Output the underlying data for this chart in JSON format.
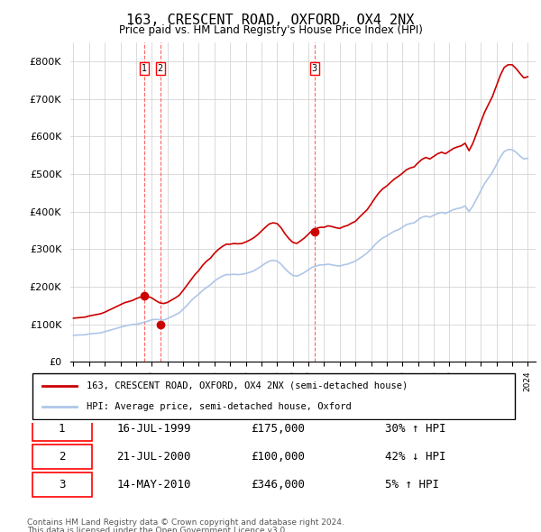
{
  "title": "163, CRESCENT ROAD, OXFORD, OX4 2NX",
  "subtitle": "Price paid vs. HM Land Registry's House Price Index (HPI)",
  "ylabel": "",
  "ylim": [
    0,
    850000
  ],
  "yticks": [
    0,
    100000,
    200000,
    300000,
    400000,
    500000,
    600000,
    700000,
    800000
  ],
  "ytick_labels": [
    "£0",
    "£100K",
    "£200K",
    "£300K",
    "£400K",
    "£500K",
    "£600K",
    "£700K",
    "£800K"
  ],
  "sale_color": "#cc0000",
  "hpi_color": "#aec6e8",
  "vline_color": "#ff6666",
  "marker_color": "#cc0000",
  "transactions": [
    {
      "label": "1",
      "date_str": "16-JUL-1999",
      "year": 1999.54,
      "price": 175000,
      "pct": "30%",
      "dir": "↑"
    },
    {
      "label": "2",
      "date_str": "21-JUL-2000",
      "year": 2000.54,
      "price": 100000,
      "pct": "42%",
      "dir": "↓"
    },
    {
      "label": "3",
      "date_str": "14-MAY-2010",
      "year": 2010.37,
      "price": 346000,
      "pct": "5%",
      "dir": "↑"
    }
  ],
  "legend_line1": "163, CRESCENT ROAD, OXFORD, OX4 2NX (semi-detached house)",
  "legend_line2": "HPI: Average price, semi-detached house, Oxford",
  "footer1": "Contains HM Land Registry data © Crown copyright and database right 2024.",
  "footer2": "This data is licensed under the Open Government Licence v3.0.",
  "table_rows": [
    [
      "1",
      "16-JUL-1999",
      "£175,000",
      "30% ↑ HPI"
    ],
    [
      "2",
      "21-JUL-2000",
      "£100,000",
      "42% ↓ HPI"
    ],
    [
      "3",
      "14-MAY-2010",
      "£346,000",
      "5% ↑ HPI"
    ]
  ],
  "hpi_data": {
    "years": [
      1995.0,
      1995.25,
      1995.5,
      1995.75,
      1996.0,
      1996.25,
      1996.5,
      1996.75,
      1997.0,
      1997.25,
      1997.5,
      1997.75,
      1998.0,
      1998.25,
      1998.5,
      1998.75,
      1999.0,
      1999.25,
      1999.5,
      1999.75,
      2000.0,
      2000.25,
      2000.5,
      2000.75,
      2001.0,
      2001.25,
      2001.5,
      2001.75,
      2002.0,
      2002.25,
      2002.5,
      2002.75,
      2003.0,
      2003.25,
      2003.5,
      2003.75,
      2004.0,
      2004.25,
      2004.5,
      2004.75,
      2005.0,
      2005.25,
      2005.5,
      2005.75,
      2006.0,
      2006.25,
      2006.5,
      2006.75,
      2007.0,
      2007.25,
      2007.5,
      2007.75,
      2008.0,
      2008.25,
      2008.5,
      2008.75,
      2009.0,
      2009.25,
      2009.5,
      2009.75,
      2010.0,
      2010.25,
      2010.5,
      2010.75,
      2011.0,
      2011.25,
      2011.5,
      2011.75,
      2012.0,
      2012.25,
      2012.5,
      2012.75,
      2013.0,
      2013.25,
      2013.5,
      2013.75,
      2014.0,
      2014.25,
      2014.5,
      2014.75,
      2015.0,
      2015.25,
      2015.5,
      2015.75,
      2016.0,
      2016.25,
      2016.5,
      2016.75,
      2017.0,
      2017.25,
      2017.5,
      2017.75,
      2018.0,
      2018.25,
      2018.5,
      2018.75,
      2019.0,
      2019.25,
      2019.5,
      2019.75,
      2020.0,
      2020.25,
      2020.5,
      2020.75,
      2021.0,
      2021.25,
      2021.5,
      2021.75,
      2022.0,
      2022.25,
      2022.5,
      2022.75,
      2023.0,
      2023.25,
      2023.5,
      2023.75,
      2024.0
    ],
    "values": [
      70000,
      71000,
      71500,
      72000,
      74000,
      75000,
      76000,
      77000,
      80000,
      83000,
      86000,
      89000,
      92000,
      95000,
      97000,
      99000,
      100000,
      102000,
      105000,
      108000,
      112000,
      113000,
      112000,
      111000,
      115000,
      120000,
      125000,
      130000,
      140000,
      150000,
      162000,
      172000,
      180000,
      190000,
      198000,
      205000,
      215000,
      222000,
      228000,
      232000,
      232000,
      233000,
      232000,
      233000,
      235000,
      238000,
      242000,
      248000,
      255000,
      262000,
      268000,
      270000,
      268000,
      260000,
      248000,
      238000,
      230000,
      228000,
      232000,
      238000,
      245000,
      252000,
      255000,
      258000,
      258000,
      260000,
      258000,
      256000,
      255000,
      258000,
      260000,
      264000,
      268000,
      275000,
      282000,
      290000,
      300000,
      312000,
      322000,
      330000,
      335000,
      342000,
      348000,
      352000,
      358000,
      365000,
      368000,
      370000,
      378000,
      385000,
      388000,
      385000,
      390000,
      395000,
      398000,
      395000,
      400000,
      405000,
      408000,
      410000,
      415000,
      400000,
      415000,
      435000,
      455000,
      475000,
      490000,
      505000,
      525000,
      545000,
      560000,
      565000,
      565000,
      558000,
      548000,
      540000,
      542000
    ]
  },
  "sale_hpi_data": {
    "years": [
      1995.0,
      1995.25,
      1995.5,
      1995.75,
      1996.0,
      1996.25,
      1996.5,
      1996.75,
      1997.0,
      1997.25,
      1997.5,
      1997.75,
      1998.0,
      1998.25,
      1998.5,
      1998.75,
      1999.0,
      1999.25,
      1999.5,
      1999.75,
      2000.0,
      2000.25,
      2000.5,
      2000.75,
      2001.0,
      2001.25,
      2001.5,
      2001.75,
      2002.0,
      2002.25,
      2002.5,
      2002.75,
      2003.0,
      2003.25,
      2003.5,
      2003.75,
      2004.0,
      2004.25,
      2004.5,
      2004.75,
      2005.0,
      2005.25,
      2005.5,
      2005.75,
      2006.0,
      2006.25,
      2006.5,
      2006.75,
      2007.0,
      2007.25,
      2007.5,
      2007.75,
      2008.0,
      2008.25,
      2008.5,
      2008.75,
      2009.0,
      2009.25,
      2009.5,
      2009.75,
      2010.0,
      2010.25,
      2010.5,
      2010.75,
      2011.0,
      2011.25,
      2011.5,
      2011.75,
      2012.0,
      2012.25,
      2012.5,
      2012.75,
      2013.0,
      2013.25,
      2013.5,
      2013.75,
      2014.0,
      2014.25,
      2014.5,
      2014.75,
      2015.0,
      2015.25,
      2015.5,
      2015.75,
      2016.0,
      2016.25,
      2016.5,
      2016.75,
      2017.0,
      2017.25,
      2017.5,
      2017.75,
      2018.0,
      2018.25,
      2018.5,
      2018.75,
      2019.0,
      2019.25,
      2019.5,
      2019.75,
      2020.0,
      2020.25,
      2020.5,
      2020.75,
      2021.0,
      2021.25,
      2021.5,
      2021.75,
      2022.0,
      2022.25,
      2022.5,
      2022.75,
      2023.0,
      2023.25,
      2023.5,
      2023.75,
      2024.0
    ],
    "values": [
      116000,
      117000,
      118000,
      119000,
      122000,
      124000,
      126000,
      128000,
      132000,
      137000,
      142000,
      147000,
      152000,
      157000,
      160000,
      163000,
      168000,
      172000,
      175000,
      174000,
      170000,
      163000,
      157000,
      155000,
      158000,
      164000,
      170000,
      177000,
      190000,
      204000,
      218000,
      232000,
      243000,
      257000,
      268000,
      276000,
      289000,
      299000,
      307000,
      313000,
      313000,
      315000,
      314000,
      315000,
      319000,
      324000,
      330000,
      338000,
      348000,
      358000,
      367000,
      370000,
      368000,
      357000,
      341000,
      328000,
      318000,
      315000,
      322000,
      330000,
      340000,
      350000,
      355000,
      358000,
      358000,
      362000,
      360000,
      357000,
      355000,
      360000,
      363000,
      369000,
      374000,
      385000,
      395000,
      405000,
      420000,
      436000,
      450000,
      461000,
      468000,
      478000,
      487000,
      494000,
      502000,
      511000,
      516000,
      519000,
      530000,
      539000,
      544000,
      540000,
      547000,
      554000,
      558000,
      554000,
      561000,
      568000,
      572000,
      575000,
      582000,
      562000,
      582000,
      610000,
      638000,
      665000,
      686000,
      707000,
      735000,
      763000,
      784000,
      791000,
      791000,
      781000,
      768000,
      756000,
      759000
    ]
  }
}
